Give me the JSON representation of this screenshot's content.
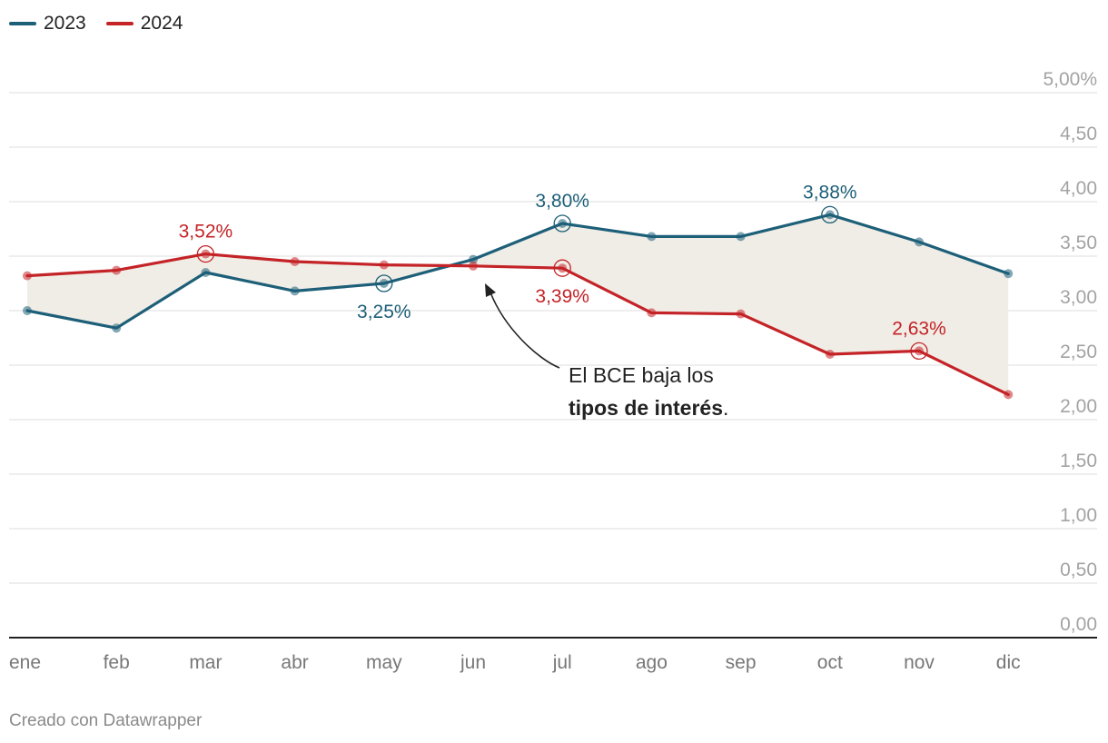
{
  "chart_data": {
    "type": "line",
    "categories": [
      "ene",
      "feb",
      "mar",
      "abr",
      "may",
      "jun",
      "jul",
      "ago",
      "sep",
      "oct",
      "nov",
      "dic"
    ],
    "series": [
      {
        "name": "2023",
        "color": "#1d5f78",
        "values": [
          3.0,
          2.84,
          3.35,
          3.18,
          3.25,
          3.47,
          3.8,
          3.68,
          3.68,
          3.88,
          3.63,
          3.34
        ]
      },
      {
        "name": "2024",
        "color": "#c42327",
        "values": [
          3.32,
          3.37,
          3.52,
          3.45,
          3.42,
          3.41,
          3.39,
          2.98,
          2.97,
          2.6,
          2.63,
          2.23
        ]
      }
    ],
    "y_ticks": [
      "0,00",
      "0,50",
      "1,00",
      "1,50",
      "2,00",
      "2,50",
      "3,00",
      "3,50",
      "4,00",
      "4,50",
      "5,00%"
    ],
    "ylim": [
      0,
      5
    ],
    "area_fill_color": "#f0ede6",
    "highlights": [
      {
        "series": "2023",
        "index": 4,
        "label": "3,25%",
        "position": "below"
      },
      {
        "series": "2023",
        "index": 6,
        "label": "3,80%",
        "position": "above"
      },
      {
        "series": "2023",
        "index": 9,
        "label": "3,88%",
        "position": "above"
      },
      {
        "series": "2024",
        "index": 2,
        "label": "3,52%",
        "position": "above"
      },
      {
        "series": "2024",
        "index": 6,
        "label": "3,39%",
        "position": "below"
      },
      {
        "series": "2024",
        "index": 10,
        "label": "2,63%",
        "position": "above"
      }
    ],
    "annotation": {
      "line1": "El BCE baja los",
      "bold": "tipos de interés",
      "suffix": "."
    },
    "legend_position": "top-left"
  },
  "legend": [
    {
      "label": "2023",
      "color": "#1d5f78"
    },
    {
      "label": "2024",
      "color": "#c42327"
    }
  ],
  "footer": "Creado con Datawrapper"
}
